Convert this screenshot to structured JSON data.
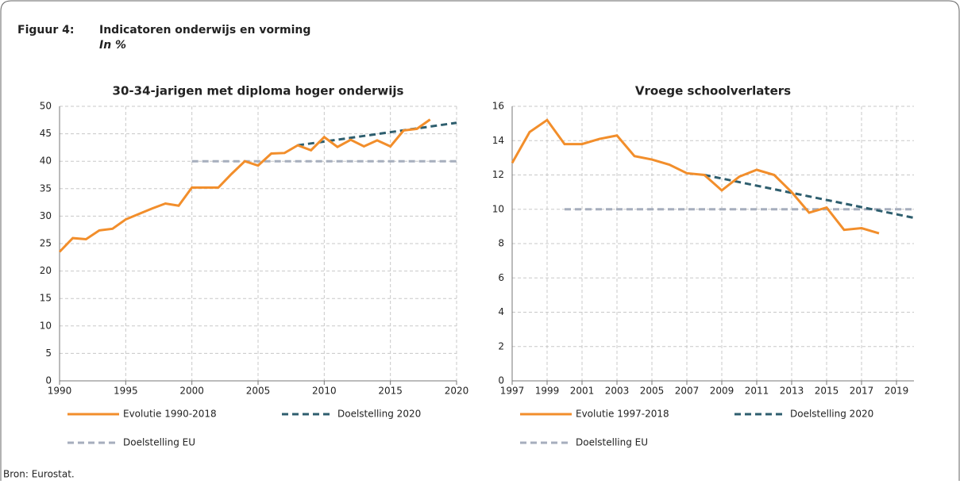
{
  "header": {
    "label": "Figuur 4:",
    "title": "Indicatoren onderwijs en vorming",
    "subtitle": "In %"
  },
  "source": "Bron: Eurostat.",
  "chart_data": [
    {
      "type": "line",
      "title": "30-34-jarigen met diploma hoger onderwijs",
      "xlim": [
        1990,
        2020
      ],
      "xticks": [
        1990,
        1995,
        2000,
        2005,
        2010,
        2015,
        2020
      ],
      "ylim": [
        0,
        50
      ],
      "yticks": [
        0,
        5,
        10,
        15,
        20,
        25,
        30,
        35,
        40,
        45,
        50
      ],
      "grid": true,
      "series": [
        {
          "name": "Evolutie 1990-2018",
          "color": "#f28e2b",
          "style": "solid",
          "x": [
            1990,
            1991,
            1992,
            1993,
            1994,
            1995,
            1996,
            1997,
            1998,
            1999,
            2000,
            2001,
            2002,
            2003,
            2004,
            2005,
            2006,
            2007,
            2008,
            2009,
            2010,
            2011,
            2012,
            2013,
            2014,
            2015,
            2016,
            2017,
            2018
          ],
          "values": [
            23.5,
            26,
            25.8,
            27.4,
            27.7,
            29.4,
            30.4,
            31.4,
            32.3,
            31.9,
            35.2,
            35.2,
            35.2,
            37.7,
            40.0,
            39.2,
            41.4,
            41.5,
            42.9,
            42.0,
            44.4,
            42.6,
            43.9,
            42.7,
            43.8,
            42.7,
            45.6,
            45.9,
            47.6
          ]
        },
        {
          "name": "Doelstelling 2020",
          "color": "#2e5e6e",
          "style": "dashed",
          "x": [
            2008,
            2020
          ],
          "values": [
            42.9,
            47
          ]
        },
        {
          "name": "Doelstelling EU",
          "color": "#a6aebd",
          "style": "dashed",
          "x": [
            2000,
            2020
          ],
          "values": [
            40,
            40
          ]
        }
      ]
    },
    {
      "type": "line",
      "title": "Vroege schoolverlaters",
      "xlim": [
        1997,
        2020
      ],
      "xticks": [
        1997,
        1999,
        2001,
        2003,
        2005,
        2007,
        2009,
        2011,
        2013,
        2015,
        2017,
        2019
      ],
      "ylim": [
        0,
        16
      ],
      "yticks": [
        0,
        2,
        4,
        6,
        8,
        10,
        12,
        14,
        16
      ],
      "grid": true,
      "series": [
        {
          "name": "Evolutie 1997-2018",
          "color": "#f28e2b",
          "style": "solid",
          "x": [
            1997,
            1998,
            1999,
            2000,
            2001,
            2002,
            2003,
            2004,
            2005,
            2006,
            2007,
            2008,
            2009,
            2010,
            2011,
            2012,
            2013,
            2014,
            2015,
            2016,
            2017,
            2018
          ],
          "values": [
            12.7,
            14.5,
            15.2,
            13.8,
            13.8,
            14.1,
            14.3,
            13.1,
            12.9,
            12.6,
            12.1,
            12.0,
            11.1,
            11.9,
            12.3,
            12.0,
            11.0,
            9.8,
            10.1,
            8.8,
            8.9,
            8.6
          ]
        },
        {
          "name": "Doelstelling 2020",
          "color": "#2e5e6e",
          "style": "dashed",
          "x": [
            2008,
            2020
          ],
          "values": [
            12.0,
            9.5
          ]
        },
        {
          "name": "Doelstelling EU",
          "color": "#a6aebd",
          "style": "dashed",
          "x": [
            2000,
            2020
          ],
          "values": [
            10,
            10
          ]
        }
      ]
    }
  ]
}
